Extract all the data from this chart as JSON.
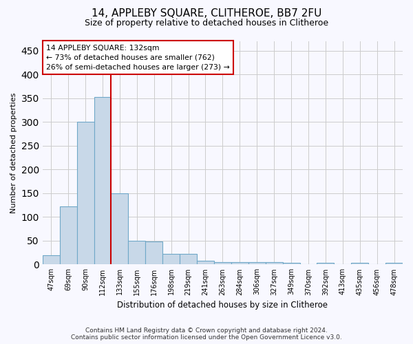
{
  "title": "14, APPLEBY SQUARE, CLITHEROE, BB7 2FU",
  "subtitle": "Size of property relative to detached houses in Clitheroe",
  "xlabel": "Distribution of detached houses by size in Clitheroe",
  "ylabel": "Number of detached properties",
  "categories": [
    "47sqm",
    "69sqm",
    "90sqm",
    "112sqm",
    "133sqm",
    "155sqm",
    "176sqm",
    "198sqm",
    "219sqm",
    "241sqm",
    "263sqm",
    "284sqm",
    "306sqm",
    "327sqm",
    "349sqm",
    "370sqm",
    "392sqm",
    "413sqm",
    "435sqm",
    "456sqm",
    "478sqm"
  ],
  "values": [
    20,
    122,
    300,
    352,
    150,
    50,
    48,
    22,
    22,
    8,
    5,
    5,
    5,
    5,
    3,
    0,
    3,
    0,
    3,
    0,
    3
  ],
  "bar_color": "#c8d8e8",
  "bar_edge_color": "#6fa8c8",
  "marker_index": 4,
  "marker_color": "#cc0000",
  "annotation_line1": "14 APPLEBY SQUARE: 132sqm",
  "annotation_line2": "← 73% of detached houses are smaller (762)",
  "annotation_line3": "26% of semi-detached houses are larger (273) →",
  "annotation_box_color": "#ffffff",
  "annotation_box_edge": "#cc0000",
  "ylim": [
    0,
    470
  ],
  "yticks": [
    0,
    50,
    100,
    150,
    200,
    250,
    300,
    350,
    400,
    450
  ],
  "footer1": "Contains HM Land Registry data © Crown copyright and database right 2024.",
  "footer2": "Contains public sector information licensed under the Open Government Licence v3.0.",
  "bg_color": "#f8f8ff",
  "plot_bg_color": "#f8f8ff"
}
